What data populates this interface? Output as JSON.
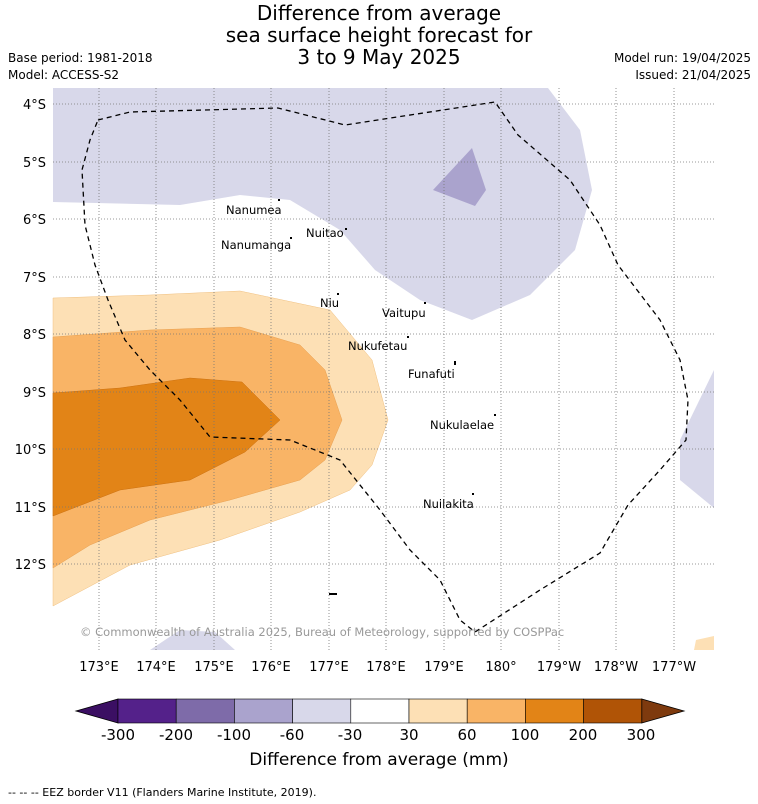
{
  "title": {
    "line1": "Difference from average",
    "line2": "sea surface height forecast for",
    "line3": "3 to 9 May 2025"
  },
  "meta_left": {
    "base_period": "Base period: 1981-2018",
    "model": "Model: ACCESS-S2"
  },
  "meta_right": {
    "model_run": "Model run: 19/04/2025",
    "issued": "Issued: 21/04/2025"
  },
  "lat_labels": [
    "4°S",
    "5°S",
    "6°S",
    "7°S",
    "8°S",
    "9°S",
    "10°S",
    "11°S",
    "12°S"
  ],
  "lon_labels": [
    "173°E",
    "174°E",
    "175°E",
    "176°E",
    "177°E",
    "178°E",
    "179°E",
    "180°",
    "179°W",
    "178°W",
    "177°W"
  ],
  "islands": [
    {
      "name": "Nanumea"
    },
    {
      "name": "Nuitao"
    },
    {
      "name": "Nanumanga"
    },
    {
      "name": "Niu"
    },
    {
      "name": "Vaitupu"
    },
    {
      "name": "Nukufetau"
    },
    {
      "name": "Funafuti"
    },
    {
      "name": "Nukulaelae"
    },
    {
      "name": "Nuilakita"
    }
  ],
  "copyright": "© Commonwealth of Australia 2025, Bureau of Meteorology, supported by COSPPac",
  "colorbar": {
    "ticks": [
      "-300",
      "-200",
      "-100",
      "-60",
      "-30",
      "30",
      "60",
      "100",
      "200",
      "300"
    ],
    "colors": [
      "#3b0f63",
      "#54218a",
      "#7e6ba9",
      "#aaa3cd",
      "#d8d8ea",
      "#ffffff",
      "#fde0b5",
      "#f9b466",
      "#e28417",
      "#b05406",
      "#7e3a0e"
    ],
    "title": "Difference from average (mm)"
  },
  "footer": "--  --  -- EEZ border V11 (Flanders Marine Institute, 2019)."
}
